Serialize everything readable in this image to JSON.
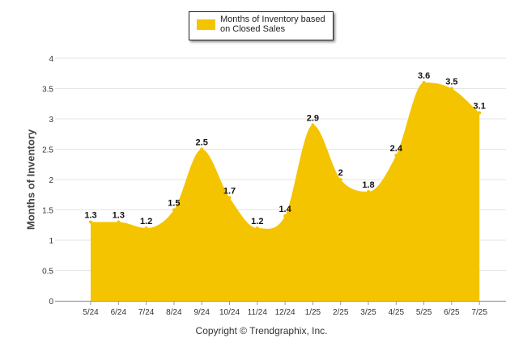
{
  "legend": {
    "label": "Months of Inventory based on Closed Sales"
  },
  "footer": {
    "credit": "Copyright © Trendgraphix, Inc."
  },
  "colors": {
    "area": "#F5C400",
    "grid": "#E6E6E6",
    "axis": "#999999",
    "text": "#333333"
  },
  "chart_data": {
    "type": "area",
    "categories": [
      "5/24",
      "6/24",
      "7/24",
      "8/24",
      "9/24",
      "10/24",
      "11/24",
      "12/24",
      "1/25",
      "2/25",
      "3/25",
      "4/25",
      "5/25",
      "6/25",
      "7/25"
    ],
    "series": [
      {
        "name": "Months of Inventory based on Closed Sales",
        "values": [
          1.3,
          1.3,
          1.2,
          1.5,
          2.5,
          1.7,
          1.2,
          1.4,
          2.9,
          2,
          1.8,
          2.4,
          3.6,
          3.5,
          3.1
        ],
        "labels": [
          "1.3",
          "1.3",
          "1.2",
          "1.5",
          "2.5",
          "1.7",
          "1.2",
          "1.4",
          "2.9",
          "2",
          "1.8",
          "2.4",
          "3.6",
          "3.5",
          "3.1"
        ]
      }
    ],
    "ylabel": "Months of Inventory",
    "xlabel": "",
    "ylim": [
      0,
      4
    ],
    "yticks": [
      "0",
      "0.5",
      "1",
      "1.5",
      "2",
      "2.5",
      "3",
      "3.5",
      "4"
    ],
    "grid": true,
    "legend_position": "top-center"
  }
}
